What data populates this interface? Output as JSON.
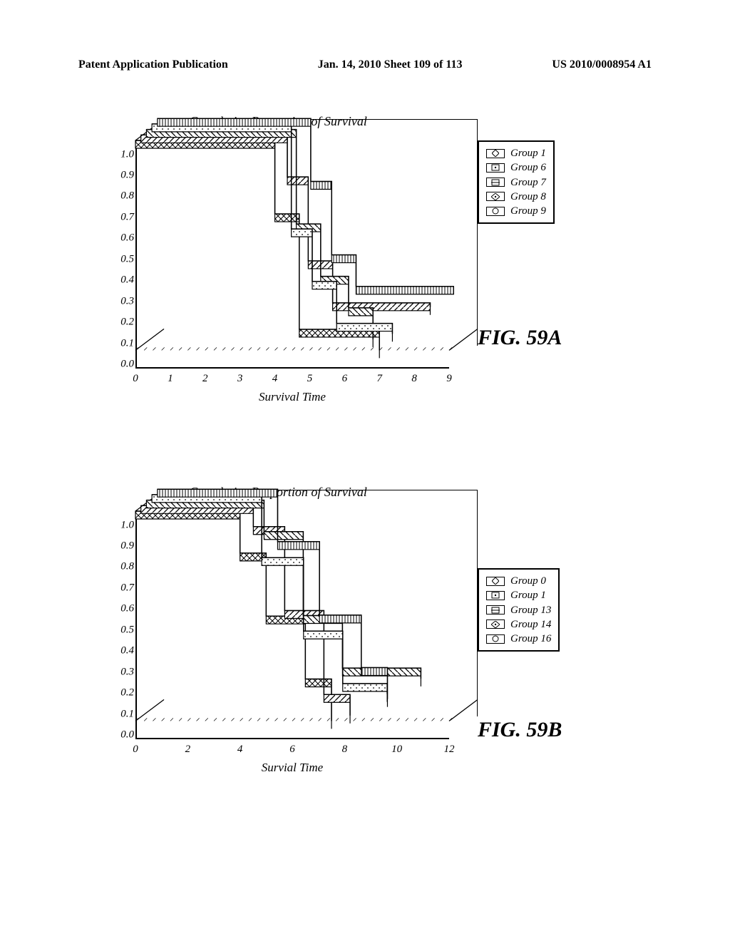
{
  "header": {
    "left": "Patent Application Publication",
    "center": "Jan. 14, 2010  Sheet 109 of 113",
    "right": "US 2010/0008954 A1"
  },
  "figA": {
    "title": "Cumulative Proportion of Survival",
    "xlabel": "Survival Time",
    "fig_label": "FIG. 59A",
    "ylim": [
      0.0,
      1.0
    ],
    "yticks": [
      "0.0",
      "0.1",
      "0.2",
      "0.3",
      "0.4",
      "0.5",
      "0.6",
      "0.7",
      "0.8",
      "0.9",
      "1.0"
    ],
    "xlim": [
      0,
      9
    ],
    "xticks": [
      "0",
      "1",
      "2",
      "3",
      "4",
      "5",
      "6",
      "7",
      "8",
      "9"
    ],
    "legend": [
      {
        "label": "Group 1",
        "marker": "diamond"
      },
      {
        "label": "Group 6",
        "marker": "square-dot"
      },
      {
        "label": "Group 7",
        "marker": "square-bar"
      },
      {
        "label": "Group 8",
        "marker": "diamond-dot"
      },
      {
        "label": "Group 9",
        "marker": "circle"
      }
    ],
    "series": [
      {
        "name": "Group 1",
        "offset": 0,
        "pattern": "cross",
        "steps": [
          [
            0,
            1.0
          ],
          [
            4.0,
            1.0
          ],
          [
            4.0,
            0.65
          ],
          [
            4.7,
            0.65
          ],
          [
            4.7,
            0.1
          ],
          [
            7.0,
            0.1
          ],
          [
            7.0,
            0.0
          ]
        ]
      },
      {
        "name": "Group 6",
        "offset": 14,
        "pattern": "diag1",
        "steps": [
          [
            0,
            1.0
          ],
          [
            4.2,
            1.0
          ],
          [
            4.2,
            0.8
          ],
          [
            4.8,
            0.8
          ],
          [
            4.8,
            0.4
          ],
          [
            5.5,
            0.4
          ],
          [
            5.5,
            0.2
          ],
          [
            8.3,
            0.2
          ],
          [
            8.3,
            0.18
          ]
        ]
      },
      {
        "name": "Group 7",
        "offset": 28,
        "pattern": "diag2",
        "steps": [
          [
            0,
            1.0
          ],
          [
            4.3,
            1.0
          ],
          [
            4.3,
            0.55
          ],
          [
            5.0,
            0.55
          ],
          [
            5.0,
            0.3
          ],
          [
            5.8,
            0.3
          ],
          [
            5.8,
            0.15
          ],
          [
            6.5,
            0.15
          ],
          [
            6.5,
            0.0
          ]
        ]
      },
      {
        "name": "Group 8",
        "offset": 42,
        "pattern": "dots",
        "steps": [
          [
            0,
            1.0
          ],
          [
            4.0,
            1.0
          ],
          [
            4.0,
            0.5
          ],
          [
            4.6,
            0.5
          ],
          [
            4.6,
            0.25
          ],
          [
            5.3,
            0.25
          ],
          [
            5.3,
            0.05
          ],
          [
            6.9,
            0.05
          ],
          [
            6.9,
            0.0
          ]
        ]
      },
      {
        "name": "Group 9",
        "offset": 56,
        "pattern": "vert",
        "steps": [
          [
            0,
            1.0
          ],
          [
            4.4,
            1.0
          ],
          [
            4.4,
            0.7
          ],
          [
            5.0,
            0.7
          ],
          [
            5.0,
            0.35
          ],
          [
            5.7,
            0.35
          ],
          [
            5.7,
            0.2
          ],
          [
            8.5,
            0.2
          ]
        ]
      }
    ],
    "colors": {
      "stroke": "#000000",
      "fill": "#ffffff"
    }
  },
  "figB": {
    "title": "Cumulative Proportion of Survival",
    "xlabel": "Survial Time",
    "fig_label": "FIG. 59B",
    "ylim": [
      0.0,
      1.0
    ],
    "yticks": [
      "0.0",
      "0.1",
      "0.2",
      "0.3",
      "0.4",
      "0.5",
      "0.6",
      "0.7",
      "0.8",
      "0.9",
      "1.0"
    ],
    "xlim": [
      0,
      12
    ],
    "xticks": [
      "0",
      "2",
      "4",
      "6",
      "8",
      "10",
      "12"
    ],
    "legend": [
      {
        "label": "Group 0",
        "marker": "diamond"
      },
      {
        "label": "Group 1",
        "marker": "square-dot"
      },
      {
        "label": "Group 13",
        "marker": "square-bar"
      },
      {
        "label": "Group 14",
        "marker": "diamond-dot"
      },
      {
        "label": "Group 16",
        "marker": "circle"
      }
    ],
    "series": [
      {
        "name": "Group 0",
        "offset": 0,
        "pattern": "cross",
        "steps": [
          [
            0,
            1.0
          ],
          [
            4.0,
            1.0
          ],
          [
            4.0,
            0.8
          ],
          [
            5.0,
            0.8
          ],
          [
            5.0,
            0.5
          ],
          [
            6.5,
            0.5
          ],
          [
            6.5,
            0.2
          ],
          [
            7.5,
            0.2
          ],
          [
            7.5,
            0.0
          ]
        ]
      },
      {
        "name": "Group 1",
        "offset": 14,
        "pattern": "diag1",
        "steps": [
          [
            0,
            1.0
          ],
          [
            4.3,
            1.0
          ],
          [
            4.3,
            0.9
          ],
          [
            5.5,
            0.9
          ],
          [
            5.5,
            0.5
          ],
          [
            7.0,
            0.5
          ],
          [
            7.0,
            0.1
          ],
          [
            8.0,
            0.1
          ],
          [
            8.0,
            0.0
          ]
        ]
      },
      {
        "name": "Group 13",
        "offset": 28,
        "pattern": "diag2",
        "steps": [
          [
            0,
            1.0
          ],
          [
            4.5,
            1.0
          ],
          [
            4.5,
            0.85
          ],
          [
            6.0,
            0.85
          ],
          [
            6.0,
            0.45
          ],
          [
            7.5,
            0.45
          ],
          [
            7.5,
            0.2
          ],
          [
            10.5,
            0.2
          ],
          [
            10.5,
            0.15
          ]
        ]
      },
      {
        "name": "Group 14",
        "offset": 42,
        "pattern": "dots",
        "steps": [
          [
            0,
            1.0
          ],
          [
            4.2,
            1.0
          ],
          [
            4.2,
            0.7
          ],
          [
            5.8,
            0.7
          ],
          [
            5.8,
            0.35
          ],
          [
            7.3,
            0.35
          ],
          [
            7.3,
            0.1
          ],
          [
            9.0,
            0.1
          ],
          [
            9.0,
            0.05
          ]
        ]
      },
      {
        "name": "Group 16",
        "offset": 56,
        "pattern": "vert",
        "steps": [
          [
            0,
            1.0
          ],
          [
            4.6,
            1.0
          ],
          [
            4.6,
            0.75
          ],
          [
            6.2,
            0.75
          ],
          [
            6.2,
            0.4
          ],
          [
            7.8,
            0.4
          ],
          [
            7.8,
            0.15
          ],
          [
            8.8,
            0.15
          ],
          [
            8.8,
            0.0
          ]
        ]
      }
    ],
    "colors": {
      "stroke": "#000000",
      "fill": "#ffffff"
    }
  }
}
